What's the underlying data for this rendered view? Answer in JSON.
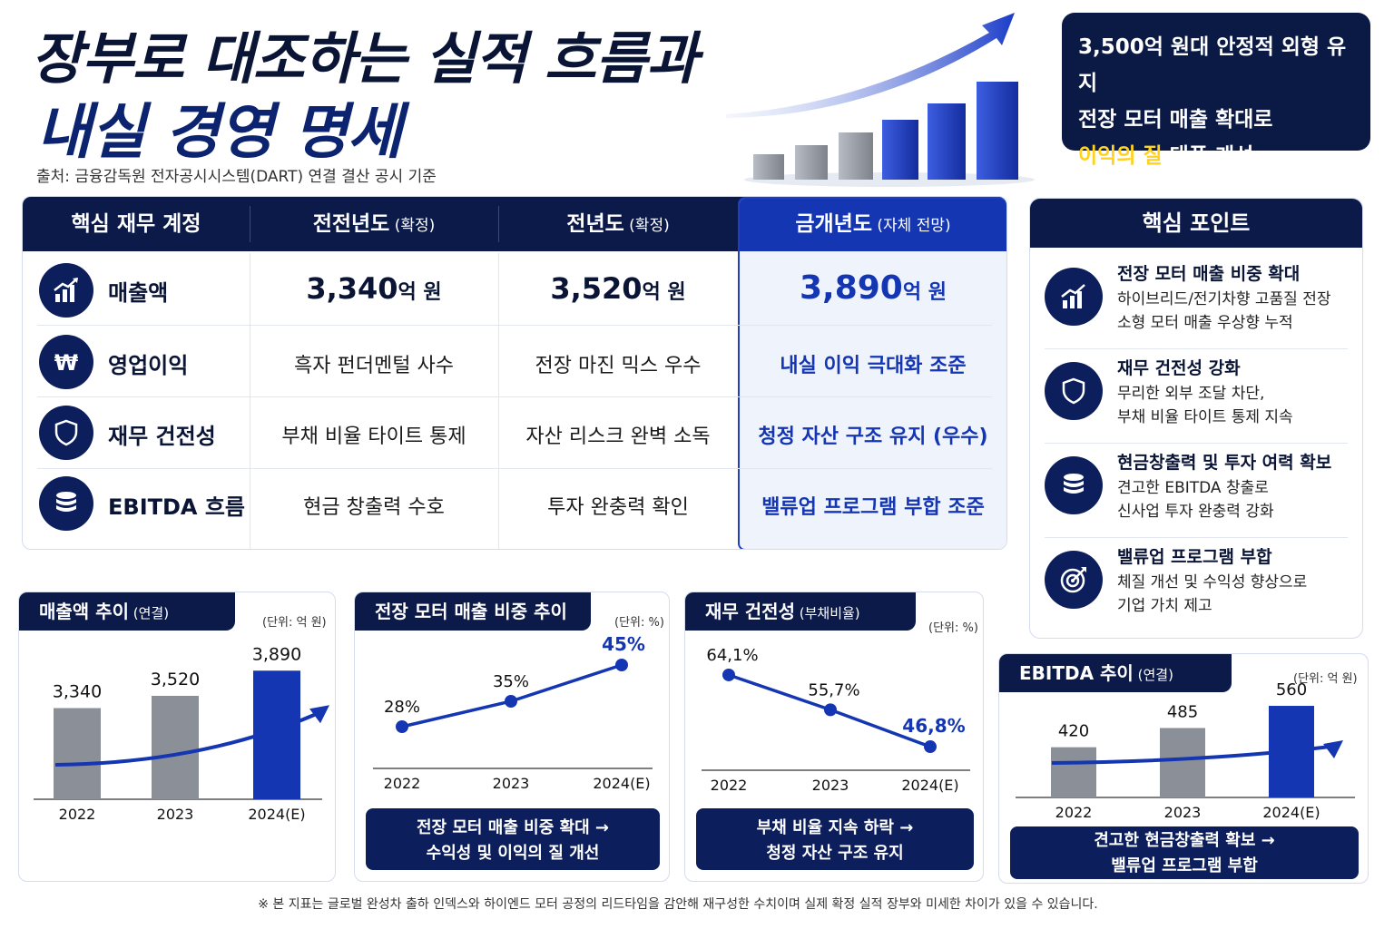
{
  "header": {
    "title_line1": "장부로 대조하는 실적 흐름과",
    "title_line2": "내실 경영 명세",
    "source": "출처: 금융감독원 전자공시시스템(DART) 연결 결산 공시 기준"
  },
  "callout": {
    "line1": "3,500억 원대 안정적 외형 유지",
    "line2": "전장 모터 매출 확대로",
    "line3_highlight": "이익의 질",
    "line3_rest": " 대폭 개선"
  },
  "table": {
    "headers": [
      {
        "main": "핵심 재무 계정",
        "sub": ""
      },
      {
        "main": "전전년도",
        "sub": " (확정)"
      },
      {
        "main": "전년도",
        "sub": " (확정)"
      },
      {
        "main": "금개년도",
        "sub": " (자체 전망)"
      }
    ],
    "rows": [
      {
        "icon": "bar-chart-icon",
        "label": "매출액",
        "c1_num": "3,340",
        "c1_unit": "억 원",
        "c2_num": "3,520",
        "c2_unit": "억 원",
        "c3_num": "3,890",
        "c3_unit": "억 원"
      },
      {
        "icon": "won-icon",
        "label": "영업이익",
        "c1": "흑자 펀더멘털 사수",
        "c2": "전장 마진 믹스 우수",
        "c3": "내실 이익 극대화 조준"
      },
      {
        "icon": "shield-icon",
        "label": "재무 건전성",
        "c1": "부채 비율 타이트 통제",
        "c2": "자산 리스크 완벽 소독",
        "c3": "청정 자산 구조 유지 (우수)"
      },
      {
        "icon": "coins-icon",
        "label": "EBITDA 흐름",
        "c1": "현금 창출력 수호",
        "c2": "투자 완충력 확인",
        "c3": "밸류업 프로그램 부합 조준"
      }
    ]
  },
  "key_points": {
    "title": "핵심 포인트",
    "items": [
      {
        "icon": "bar-chart-icon",
        "title": "전장 모터 매출 비중 확대",
        "desc1": "하이브리드/전기차향 고품질 전장",
        "desc2": "소형 모터 매출 우상향 누적"
      },
      {
        "icon": "shield-icon",
        "title": "재무 건전성 강화",
        "desc1": "무리한 외부 조달 차단,",
        "desc2": "부채 비율 타이트 통제 지속"
      },
      {
        "icon": "coins-icon",
        "title": "현금창출력 및 투자 여력 확보",
        "desc1": "견고한 EBITDA 창출로",
        "desc2": "신사업 투자 완충력 강화"
      },
      {
        "icon": "target-icon",
        "title": "밸류업 프로그램 부합",
        "desc1": "체질 개선 및 수익성 향상으로",
        "desc2": "기업 가치 제고"
      }
    ]
  },
  "charts": {
    "revenue": {
      "title": "매출액 추이",
      "title_sub": " (연결)",
      "unit": "(단위: 억 원)"
    },
    "ev_share": {
      "title": "전장 모터 매출 비중 추이",
      "unit": "(단위: %)",
      "summary1": "전장 모터 매출 비중 확대 →",
      "summary2": "수익성 및 이익의 질 개선"
    },
    "debt": {
      "title": "재무 건전성",
      "title_sub": " (부채비율)",
      "unit": "(단위: %)",
      "summary1": "부채 비율 지속 하락 →",
      "summary2": "청정 자산 구조 유지"
    },
    "ebitda": {
      "title": "EBITDA 추이",
      "title_sub": " (연결)",
      "unit": "(단위: 억 원)",
      "summary1": "견고한 현금창출력 확보 →",
      "summary2": "밸류업 프로그램 부합"
    }
  },
  "chart_data": [
    {
      "type": "bar",
      "title": "매출액 추이 (연결)",
      "categories": [
        "2022",
        "2023",
        "2024(E)"
      ],
      "values": [
        3340,
        3520,
        3890
      ],
      "labels": [
        "3,340",
        "3,520",
        "3,890"
      ],
      "colors": [
        "#8a8f98",
        "#8a8f98",
        "#1436b3"
      ],
      "ylim": [
        2000,
        4000
      ]
    },
    {
      "type": "line",
      "title": "전장 모터 매출 비중 추이",
      "categories": [
        "2022",
        "2023",
        "2024(E)"
      ],
      "values": [
        28,
        35,
        45
      ],
      "labels": [
        "28%",
        "35%",
        "45%"
      ],
      "ylim": [
        15,
        50
      ]
    },
    {
      "type": "line",
      "title": "재무 건전성 (부채비율)",
      "categories": [
        "2022",
        "2023",
        "2024(E)"
      ],
      "values": [
        64.1,
        55.7,
        46.8
      ],
      "labels": [
        "64,1%",
        "55,7%",
        "46,8%"
      ],
      "ylim": [
        35,
        70
      ]
    },
    {
      "type": "bar",
      "title": "EBITDA 추이 (연결)",
      "categories": [
        "2022",
        "2023",
        "2024(E)"
      ],
      "values": [
        420,
        485,
        560
      ],
      "labels": [
        "420",
        "485",
        "560"
      ],
      "colors": [
        "#8a8f98",
        "#8a8f98",
        "#1436b3"
      ],
      "ylim": [
        250,
        600
      ]
    }
  ],
  "footnote": "※ 본 지표는 글로벌 완성차 출하 인덱스와 하이엔드 모터 공정의 리드타임을 감안해 재구성한 수치이며 실제 확정 실적 장부와 미세한 차이가 있을 수 있습니다.",
  "colors": {
    "navy": "#0c1a4a",
    "accent": "#1436b3",
    "gray": "#8a8f98",
    "highlight": "#ffd21f"
  }
}
